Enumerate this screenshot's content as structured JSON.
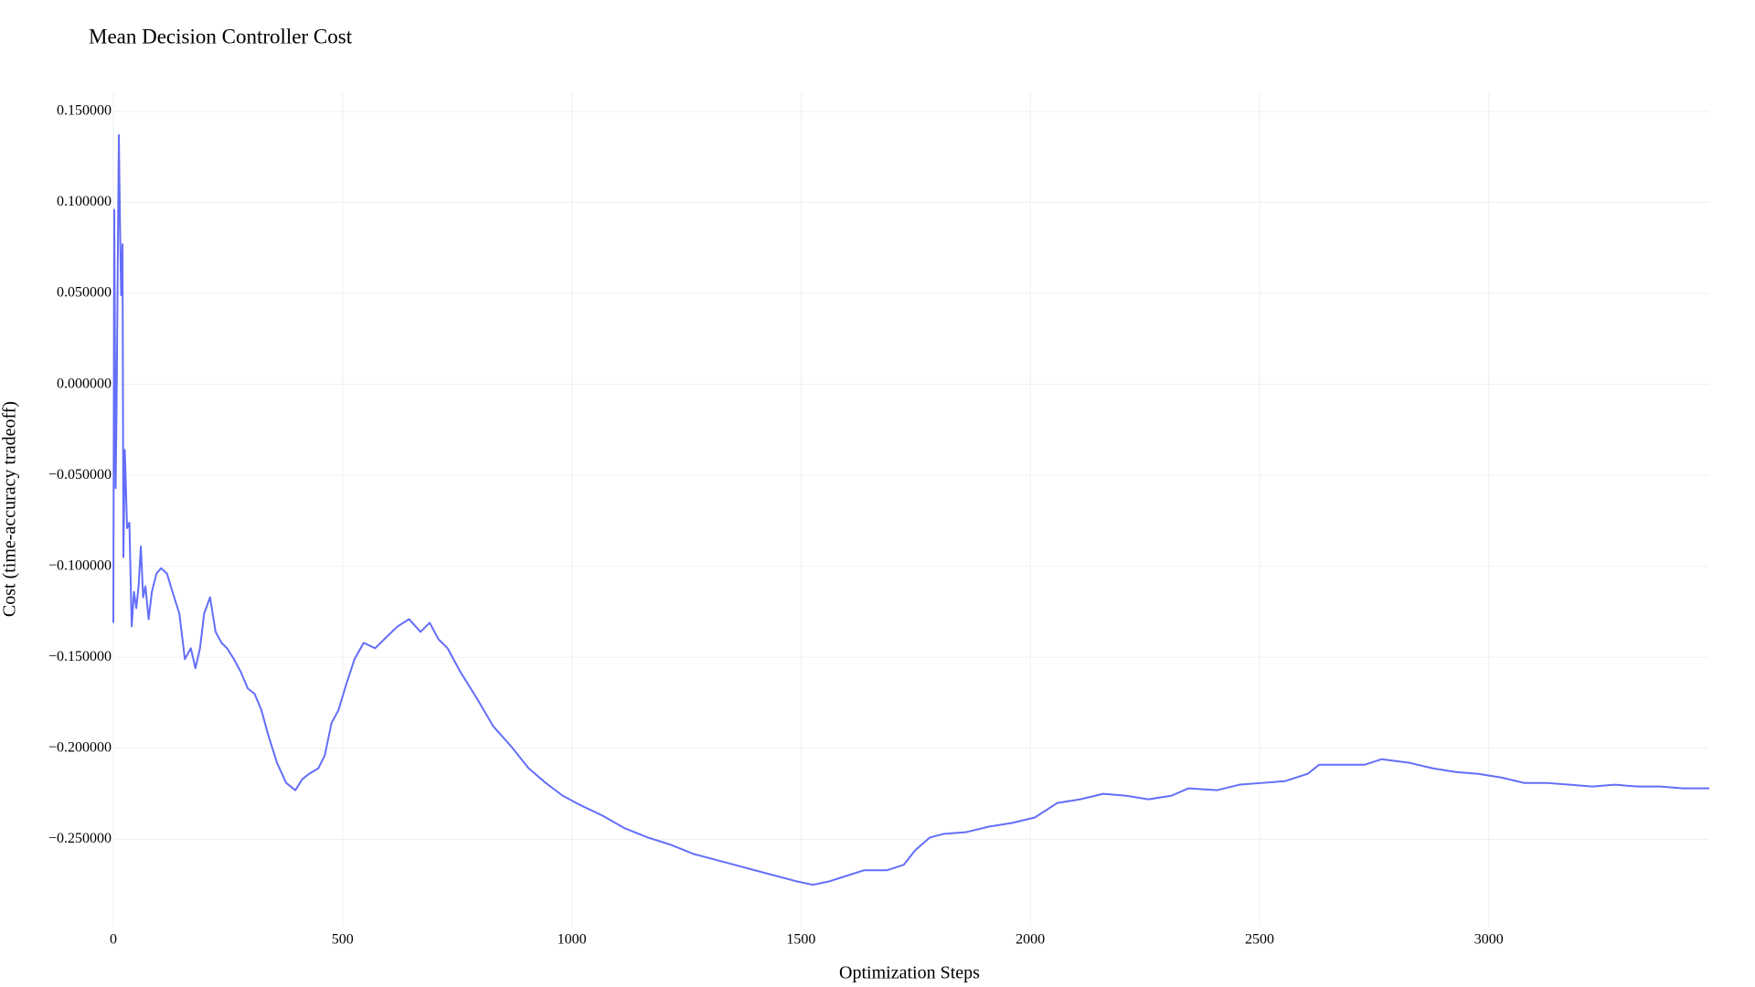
{
  "chart_data": {
    "type": "line",
    "title": "Mean Decision Controller Cost",
    "x_label": "Optimization Steps",
    "y_label": "Cost (time-accuracy tradeoff)",
    "x": [
      0,
      2,
      5,
      7,
      12,
      15,
      17,
      20,
      22,
      25,
      30,
      35,
      40,
      45,
      50,
      55,
      60,
      65,
      70,
      77,
      84,
      94,
      104,
      117,
      129,
      144,
      156,
      169,
      179,
      189,
      198,
      211,
      223,
      236,
      248,
      263,
      278,
      293,
      308,
      323,
      337,
      357,
      377,
      397,
      412,
      427,
      447,
      461,
      476,
      491,
      509,
      526,
      546,
      571,
      595,
      620,
      645,
      670,
      690,
      709,
      729,
      757,
      794,
      829,
      868,
      906,
      943,
      980,
      1017,
      1067,
      1116,
      1166,
      1216,
      1265,
      1340,
      1414,
      1489,
      1526,
      1563,
      1600,
      1637,
      1687,
      1724,
      1749,
      1781,
      1811,
      1861,
      1910,
      1960,
      2010,
      2059,
      2109,
      2159,
      2208,
      2258,
      2308,
      2345,
      2407,
      2456,
      2506,
      2556,
      2605,
      2630,
      2680,
      2729,
      2766,
      2828,
      2878,
      2928,
      2977,
      3027,
      3077,
      3126,
      3176,
      3226,
      3275,
      3325,
      3374,
      3424,
      3481
    ],
    "series": [
      {
        "name": "Mean Decision Controller Cost",
        "color": "#636efa",
        "values": [
          -0.131,
          0.096,
          -0.057,
          -0.014,
          0.137,
          0.08,
          0.049,
          0.077,
          -0.095,
          -0.036,
          -0.079,
          -0.076,
          -0.133,
          -0.114,
          -0.123,
          -0.111,
          -0.089,
          -0.117,
          -0.111,
          -0.129,
          -0.114,
          -0.104,
          -0.101,
          -0.104,
          -0.114,
          -0.126,
          -0.151,
          -0.145,
          -0.156,
          -0.145,
          -0.126,
          -0.117,
          -0.136,
          -0.142,
          -0.145,
          -0.151,
          -0.158,
          -0.167,
          -0.17,
          -0.179,
          -0.192,
          -0.208,
          -0.219,
          -0.223,
          -0.217,
          -0.214,
          -0.211,
          -0.204,
          -0.186,
          -0.179,
          -0.164,
          -0.151,
          -0.142,
          -0.145,
          -0.139,
          -0.133,
          -0.129,
          -0.136,
          -0.131,
          -0.14,
          -0.145,
          -0.158,
          -0.173,
          -0.188,
          -0.199,
          -0.211,
          -0.219,
          -0.226,
          -0.231,
          -0.237,
          -0.244,
          -0.249,
          -0.253,
          -0.258,
          -0.263,
          -0.268,
          -0.273,
          -0.275,
          -0.273,
          -0.27,
          -0.267,
          -0.267,
          -0.264,
          -0.256,
          -0.249,
          -0.247,
          -0.246,
          -0.243,
          -0.241,
          -0.238,
          -0.23,
          -0.228,
          -0.225,
          -0.226,
          -0.228,
          -0.226,
          -0.222,
          -0.223,
          -0.22,
          -0.219,
          -0.218,
          -0.214,
          -0.209,
          -0.209,
          -0.209,
          -0.206,
          -0.208,
          -0.211,
          -0.213,
          -0.214,
          -0.216,
          -0.219,
          -0.219,
          -0.22,
          -0.221,
          -0.22,
          -0.221,
          -0.221,
          -0.222,
          -0.222
        ]
      }
    ],
    "xlim": [
      0,
      3481
    ],
    "xticks": [
      0,
      500,
      1000,
      1500,
      2000,
      2500,
      3000
    ],
    "ylim": [
      -0.298,
      0.16
    ],
    "yticks": [
      {
        "value": 0.15,
        "label": "0.150000"
      },
      {
        "value": 0.1,
        "label": "0.100000"
      },
      {
        "value": 0.05,
        "label": "0.050000"
      },
      {
        "value": 0,
        "label": "0.000000"
      },
      {
        "value": -0.05,
        "label": "−0.050000"
      },
      {
        "value": -0.1,
        "label": "−0.100000"
      },
      {
        "value": -0.15,
        "label": "−0.150000"
      },
      {
        "value": -0.2,
        "label": "−0.200000"
      },
      {
        "value": -0.25,
        "label": "−0.250000"
      }
    ],
    "grid": true
  }
}
